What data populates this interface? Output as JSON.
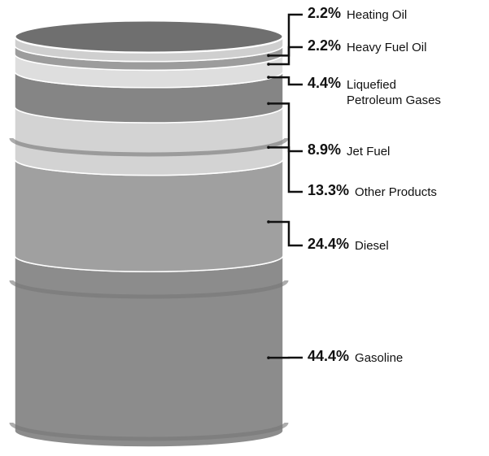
{
  "chart_data": {
    "type": "barrel",
    "categories": [
      "Heating Oil",
      "Heavy Fuel Oil",
      "Liquefied Petroleum Gases",
      "Jet Fuel",
      "Other Products",
      "Diesel",
      "Gasoline"
    ],
    "values": [
      2.2,
      2.2,
      4.4,
      8.9,
      13.3,
      24.4,
      44.4
    ],
    "value_labels": [
      "2.2%",
      "2.2%",
      "4.4%",
      "8.9%",
      "13.3%",
      "24.4%",
      "44.4%"
    ],
    "colors": [
      "#cfcfcf",
      "#9c9c9c",
      "#dedede",
      "#858585",
      "#d3d3d3",
      "#a0a0a0",
      "#8c8c8c"
    ]
  }
}
